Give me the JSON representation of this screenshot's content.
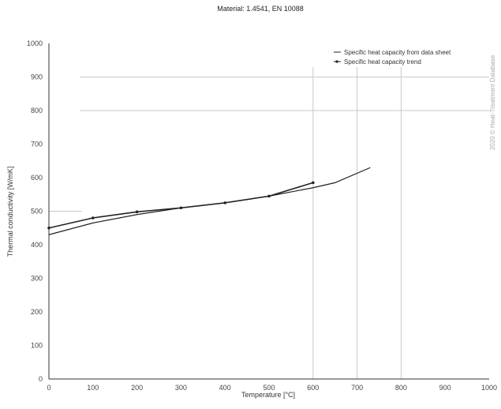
{
  "chart_data": {
    "type": "line",
    "title": "Material: 1.4541, EN 10088",
    "xlabel": "Temperature [°C]",
    "ylabel": "Thermal conductivity [W/mK]",
    "xlim": [
      0,
      1000
    ],
    "ylim": [
      0,
      1000
    ],
    "x_ticks": [
      "0",
      "100",
      "200",
      "300",
      "400",
      "500",
      "600",
      "700",
      "800",
      "900",
      "1000"
    ],
    "y_ticks": [
      "0",
      "100",
      "200",
      "300",
      "400",
      "500",
      "600",
      "700",
      "800",
      "900",
      "1000"
    ],
    "legend_position": "top-right",
    "series": [
      {
        "name": "Specific heat capacity from data sheet",
        "x": [
          0,
          100,
          200,
          300,
          400,
          500,
          600,
          650,
          730
        ],
        "values": [
          430,
          465,
          490,
          510,
          525,
          545,
          570,
          585,
          630
        ]
      },
      {
        "name": "Specific heat capacity trend",
        "x": [
          0,
          100,
          200,
          300,
          400,
          500,
          600
        ],
        "values": [
          450,
          480,
          498,
          510,
          525,
          545,
          585
        ]
      }
    ],
    "markers_on_series": 1,
    "vertical_reference_lines": [
      600,
      700,
      800
    ],
    "horizontal_reference_lines": [
      900,
      800
    ],
    "grid": false,
    "colors": {
      "series": "#222222",
      "reference_lines": "#c8c8c8",
      "axes": "#333333"
    }
  },
  "watermark_text": "2020 © Heat-Treatment Database"
}
